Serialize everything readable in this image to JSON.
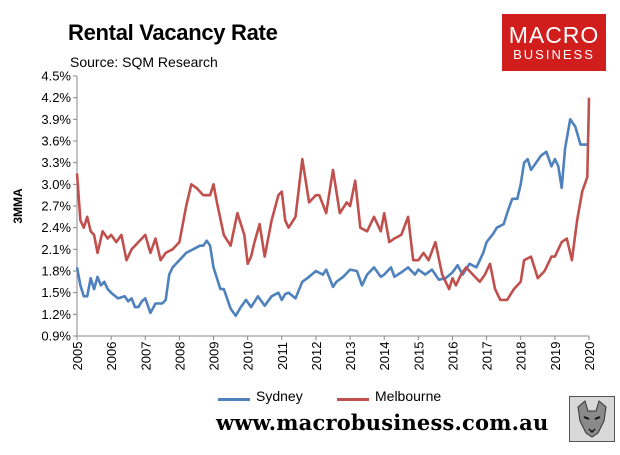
{
  "header": {
    "title": "Rental Vacancy Rate",
    "subtitle": "Source: SQM Research"
  },
  "logo": {
    "line1": "MACRO",
    "line2": "BUSINESS"
  },
  "website": "www.macrobusiness.com.au",
  "colors": {
    "sydney": "#4f81bd",
    "melbourne": "#c0504d",
    "logo_red": "#d21d1d"
  },
  "chart_data": {
    "type": "line",
    "ylabel": "3MMA",
    "xlabel": "",
    "ylim": [
      0.9,
      4.5
    ],
    "yticks": [
      "0.9%",
      "1.2%",
      "1.5%",
      "1.8%",
      "2.1%",
      "2.4%",
      "2.7%",
      "3.0%",
      "3.3%",
      "3.6%",
      "3.9%",
      "4.2%",
      "4.5%"
    ],
    "xticks": [
      "2005",
      "2006",
      "2007",
      "2008",
      "2009",
      "2010",
      "2011",
      "2012",
      "2013",
      "2014",
      "2015",
      "2016",
      "2017",
      "2018",
      "2019",
      "2020"
    ],
    "xlim": [
      2005,
      2020
    ],
    "grid": false,
    "legend": "bottom",
    "series": [
      {
        "name": "Sydney",
        "color": "#4f81bd",
        "x": [
          2005.0,
          2005.1,
          2005.2,
          2005.3,
          2005.4,
          2005.5,
          2005.6,
          2005.7,
          2005.8,
          2005.9,
          2006.0,
          2006.2,
          2006.4,
          2006.5,
          2006.6,
          2006.7,
          2006.8,
          2006.9,
          2007.0,
          2007.15,
          2007.3,
          2007.5,
          2007.6,
          2007.7,
          2007.8,
          2008.0,
          2008.2,
          2008.4,
          2008.6,
          2008.7,
          2008.8,
          2008.9,
          2009.0,
          2009.2,
          2009.3,
          2009.5,
          2009.65,
          2009.8,
          2009.95,
          2010.1,
          2010.3,
          2010.5,
          2010.7,
          2010.9,
          2011.0,
          2011.1,
          2011.2,
          2011.4,
          2011.6,
          2011.8,
          2012.0,
          2012.2,
          2012.3,
          2012.5,
          2012.6,
          2012.8,
          2013.0,
          2013.2,
          2013.35,
          2013.5,
          2013.7,
          2013.9,
          2014.0,
          2014.2,
          2014.3,
          2014.5,
          2014.7,
          2014.9,
          2015.0,
          2015.2,
          2015.4,
          2015.6,
          2015.8,
          2016.0,
          2016.15,
          2016.3,
          2016.5,
          2016.7,
          2016.9,
          2017.0,
          2017.2,
          2017.3,
          2017.5,
          2017.6,
          2017.75,
          2017.9,
          2018.0,
          2018.1,
          2018.2,
          2018.3,
          2018.45,
          2018.6,
          2018.75,
          2018.9,
          2019.0,
          2019.1,
          2019.2,
          2019.3,
          2019.45,
          2019.6,
          2019.75,
          2019.9,
          2020.0
        ],
        "values": [
          1.85,
          1.6,
          1.45,
          1.45,
          1.7,
          1.55,
          1.72,
          1.6,
          1.65,
          1.55,
          1.5,
          1.42,
          1.45,
          1.38,
          1.42,
          1.3,
          1.3,
          1.38,
          1.42,
          1.22,
          1.35,
          1.35,
          1.4,
          1.75,
          1.85,
          1.95,
          2.05,
          2.1,
          2.15,
          2.15,
          2.22,
          2.15,
          1.85,
          1.55,
          1.55,
          1.28,
          1.18,
          1.3,
          1.4,
          1.3,
          1.45,
          1.32,
          1.45,
          1.5,
          1.4,
          1.48,
          1.5,
          1.42,
          1.65,
          1.72,
          1.8,
          1.75,
          1.82,
          1.58,
          1.65,
          1.72,
          1.82,
          1.8,
          1.6,
          1.75,
          1.85,
          1.72,
          1.75,
          1.85,
          1.72,
          1.78,
          1.85,
          1.75,
          1.82,
          1.75,
          1.82,
          1.68,
          1.7,
          1.78,
          1.88,
          1.75,
          1.9,
          1.85,
          2.05,
          2.2,
          2.32,
          2.4,
          2.45,
          2.6,
          2.8,
          2.8,
          3.0,
          3.3,
          3.35,
          3.2,
          3.3,
          3.4,
          3.45,
          3.25,
          3.35,
          3.25,
          2.95,
          3.5,
          3.9,
          3.8,
          3.55,
          3.55,
          3.55
        ]
      },
      {
        "name": "Melbourne",
        "color": "#c0504d",
        "x": [
          2005.0,
          2005.1,
          2005.2,
          2005.3,
          2005.4,
          2005.5,
          2005.6,
          2005.75,
          2005.9,
          2006.0,
          2006.15,
          2006.3,
          2006.45,
          2006.6,
          2006.8,
          2007.0,
          2007.15,
          2007.3,
          2007.45,
          2007.6,
          2007.8,
          2008.0,
          2008.2,
          2008.35,
          2008.5,
          2008.7,
          2008.9,
          2009.0,
          2009.1,
          2009.3,
          2009.5,
          2009.7,
          2009.9,
          2010.0,
          2010.1,
          2010.2,
          2010.35,
          2010.5,
          2010.7,
          2010.9,
          2011.0,
          2011.1,
          2011.2,
          2011.4,
          2011.6,
          2011.8,
          2012.0,
          2012.1,
          2012.3,
          2012.5,
          2012.7,
          2012.9,
          2013.0,
          2013.15,
          2013.3,
          2013.5,
          2013.7,
          2013.9,
          2014.0,
          2014.15,
          2014.3,
          2014.5,
          2014.7,
          2014.85,
          2015.0,
          2015.15,
          2015.3,
          2015.5,
          2015.7,
          2015.9,
          2016.0,
          2016.1,
          2016.25,
          2016.4,
          2016.6,
          2016.8,
          2016.95,
          2017.1,
          2017.25,
          2017.4,
          2017.6,
          2017.8,
          2018.0,
          2018.1,
          2018.3,
          2018.5,
          2018.7,
          2018.9,
          2019.0,
          2019.2,
          2019.35,
          2019.5,
          2019.65,
          2019.8,
          2019.95,
          2020.0
        ],
        "values": [
          3.15,
          2.5,
          2.4,
          2.55,
          2.35,
          2.3,
          2.05,
          2.35,
          2.25,
          2.3,
          2.2,
          2.3,
          1.95,
          2.1,
          2.2,
          2.3,
          2.05,
          2.25,
          1.95,
          2.05,
          2.1,
          2.2,
          2.7,
          3.0,
          2.95,
          2.85,
          2.85,
          3.0,
          2.75,
          2.3,
          2.15,
          2.6,
          2.3,
          1.9,
          2.0,
          2.2,
          2.45,
          2.0,
          2.5,
          2.85,
          2.9,
          2.5,
          2.4,
          2.55,
          3.35,
          2.75,
          2.85,
          2.85,
          2.6,
          3.2,
          2.6,
          2.75,
          2.7,
          3.05,
          2.4,
          2.35,
          2.55,
          2.35,
          2.6,
          2.2,
          2.25,
          2.3,
          2.55,
          1.95,
          1.95,
          2.05,
          1.95,
          2.2,
          1.75,
          1.55,
          1.7,
          1.6,
          1.75,
          1.85,
          1.75,
          1.65,
          1.75,
          1.9,
          1.55,
          1.4,
          1.4,
          1.55,
          1.65,
          1.95,
          2.0,
          1.7,
          1.8,
          2.0,
          2.0,
          2.2,
          2.25,
          1.95,
          2.5,
          2.9,
          3.1,
          4.2
        ]
      }
    ]
  }
}
